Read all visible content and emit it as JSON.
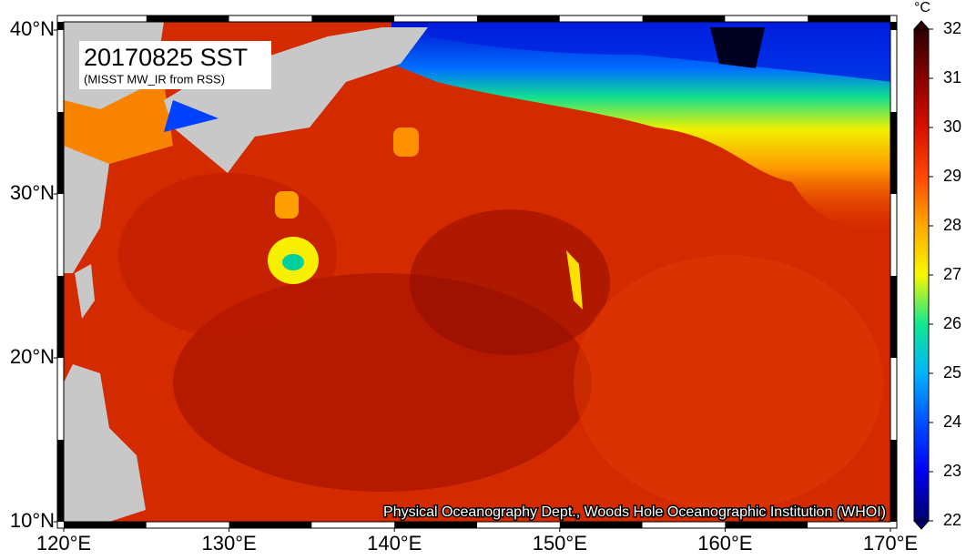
{
  "map": {
    "title": "20170825 SST",
    "subtitle": "(MISST MW_IR from RSS)",
    "credit": "Physical Oceanography Dept., Woods Hole Oceanographic Institution (WHOI)",
    "lonlim": [
      120,
      170
    ],
    "latlim": [
      10,
      40.5
    ],
    "lon_ticks": [
      {
        "value": 120,
        "label": "120°E"
      },
      {
        "value": 130,
        "label": "130°E"
      },
      {
        "value": 140,
        "label": "140°E"
      },
      {
        "value": 150,
        "label": "150°E"
      },
      {
        "value": 160,
        "label": "160°E"
      },
      {
        "value": 170,
        "label": "170°E"
      }
    ],
    "lat_ticks": [
      {
        "value": 10,
        "label": "10°N"
      },
      {
        "value": 20,
        "label": "20°N"
      },
      {
        "value": 30,
        "label": "30°N"
      },
      {
        "value": 40,
        "label": "40°N"
      }
    ],
    "colorbar": {
      "unit": "°C",
      "lim": [
        22,
        32
      ],
      "ticks": [
        22,
        23,
        24,
        25,
        26,
        27,
        28,
        29,
        30,
        31,
        32
      ],
      "colors": [
        "#00006e",
        "#0000f0",
        "#0050ff",
        "#00b4ff",
        "#10e890",
        "#f8f800",
        "#ffa800",
        "#ff4800",
        "#d81000",
        "#8a0000",
        "#2a0000"
      ]
    }
  }
}
